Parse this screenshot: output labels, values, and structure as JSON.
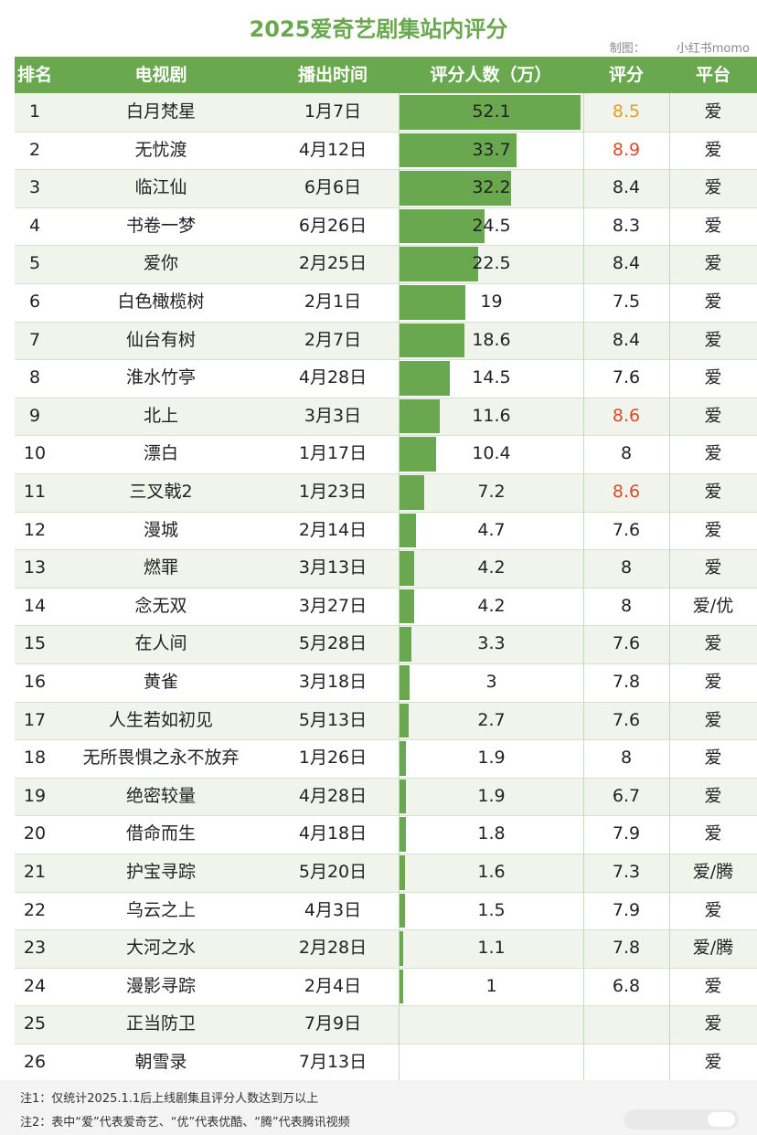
{
  "title": "2025爱奇艺剧集站内评分",
  "credit": {
    "label": "制图：",
    "author": "小红书momo"
  },
  "columns": [
    "排名",
    "电视剧",
    "播出时间",
    "评分人数（万）",
    "评分",
    "平台"
  ],
  "colors": {
    "header_bg": "#6aa84f",
    "bar": "#6aa84f",
    "rating_default": "#222222",
    "rating_gold": "#e0a020",
    "rating_red": "#d94a2a"
  },
  "chart_data": {
    "type": "table",
    "title": "2025爱奇艺剧集站内评分",
    "xlim": [
      0,
      52.1
    ],
    "rows": [
      {
        "rank": "1",
        "name": "白月梵星",
        "date": "1月7日",
        "count": 52.1,
        "count_label": "52.1",
        "rating": "8.5",
        "rating_color": "gold",
        "platform": "爱"
      },
      {
        "rank": "2",
        "name": "无忧渡",
        "date": "4月12日",
        "count": 33.7,
        "count_label": "33.7",
        "rating": "8.9",
        "rating_color": "red",
        "platform": "爱"
      },
      {
        "rank": "3",
        "name": "临江仙",
        "date": "6月6日",
        "count": 32.2,
        "count_label": "32.2",
        "rating": "8.4",
        "rating_color": "default",
        "platform": "爱"
      },
      {
        "rank": "4",
        "name": "书卷一梦",
        "date": "6月26日",
        "count": 24.5,
        "count_label": "24.5",
        "rating": "8.3",
        "rating_color": "default",
        "platform": "爱"
      },
      {
        "rank": "5",
        "name": "爱你",
        "date": "2月25日",
        "count": 22.5,
        "count_label": "22.5",
        "rating": "8.4",
        "rating_color": "default",
        "platform": "爱"
      },
      {
        "rank": "6",
        "name": "白色橄榄树",
        "date": "2月1日",
        "count": 19,
        "count_label": "19",
        "rating": "7.5",
        "rating_color": "default",
        "platform": "爱"
      },
      {
        "rank": "7",
        "name": "仙台有树",
        "date": "2月7日",
        "count": 18.6,
        "count_label": "18.6",
        "rating": "8.4",
        "rating_color": "default",
        "platform": "爱"
      },
      {
        "rank": "8",
        "name": "淮水竹亭",
        "date": "4月28日",
        "count": 14.5,
        "count_label": "14.5",
        "rating": "7.6",
        "rating_color": "default",
        "platform": "爱"
      },
      {
        "rank": "9",
        "name": "北上",
        "date": "3月3日",
        "count": 11.6,
        "count_label": "11.6",
        "rating": "8.6",
        "rating_color": "red",
        "platform": "爱"
      },
      {
        "rank": "10",
        "name": "漂白",
        "date": "1月17日",
        "count": 10.4,
        "count_label": "10.4",
        "rating": "8",
        "rating_color": "default",
        "platform": "爱"
      },
      {
        "rank": "11",
        "name": "三叉戟2",
        "date": "1月23日",
        "count": 7.2,
        "count_label": "7.2",
        "rating": "8.6",
        "rating_color": "red",
        "platform": "爱"
      },
      {
        "rank": "12",
        "name": "漫城",
        "date": "2月14日",
        "count": 4.7,
        "count_label": "4.7",
        "rating": "7.6",
        "rating_color": "default",
        "platform": "爱"
      },
      {
        "rank": "13",
        "name": "燃罪",
        "date": "3月13日",
        "count": 4.2,
        "count_label": "4.2",
        "rating": "8",
        "rating_color": "default",
        "platform": "爱"
      },
      {
        "rank": "14",
        "name": "念无双",
        "date": "3月27日",
        "count": 4.2,
        "count_label": "4.2",
        "rating": "8",
        "rating_color": "default",
        "platform": "爱/优"
      },
      {
        "rank": "15",
        "name": "在人间",
        "date": "5月28日",
        "count": 3.3,
        "count_label": "3.3",
        "rating": "7.6",
        "rating_color": "default",
        "platform": "爱"
      },
      {
        "rank": "16",
        "name": "黄雀",
        "date": "3月18日",
        "count": 3,
        "count_label": "3",
        "rating": "7.8",
        "rating_color": "default",
        "platform": "爱"
      },
      {
        "rank": "17",
        "name": "人生若如初见",
        "date": "5月13日",
        "count": 2.7,
        "count_label": "2.7",
        "rating": "7.6",
        "rating_color": "default",
        "platform": "爱"
      },
      {
        "rank": "18",
        "name": "无所畏惧之永不放弃",
        "date": "1月26日",
        "count": 1.9,
        "count_label": "1.9",
        "rating": "8",
        "rating_color": "default",
        "platform": "爱"
      },
      {
        "rank": "19",
        "name": "绝密较量",
        "date": "4月28日",
        "count": 1.9,
        "count_label": "1.9",
        "rating": "6.7",
        "rating_color": "default",
        "platform": "爱"
      },
      {
        "rank": "20",
        "name": "借命而生",
        "date": "4月18日",
        "count": 1.8,
        "count_label": "1.8",
        "rating": "7.9",
        "rating_color": "default",
        "platform": "爱"
      },
      {
        "rank": "21",
        "name": "护宝寻踪",
        "date": "5月20日",
        "count": 1.6,
        "count_label": "1.6",
        "rating": "7.3",
        "rating_color": "default",
        "platform": "爱/腾"
      },
      {
        "rank": "22",
        "name": "乌云之上",
        "date": "4月3日",
        "count": 1.5,
        "count_label": "1.5",
        "rating": "7.9",
        "rating_color": "default",
        "platform": "爱"
      },
      {
        "rank": "23",
        "name": "大河之水",
        "date": "2月28日",
        "count": 1.1,
        "count_label": "1.1",
        "rating": "7.8",
        "rating_color": "default",
        "platform": "爱/腾"
      },
      {
        "rank": "24",
        "name": "漫影寻踪",
        "date": "2月4日",
        "count": 1,
        "count_label": "1",
        "rating": "6.8",
        "rating_color": "default",
        "platform": "爱"
      },
      {
        "rank": "25",
        "name": "正当防卫",
        "date": "7月9日",
        "count": null,
        "count_label": "",
        "rating": "",
        "rating_color": "default",
        "platform": "爱"
      },
      {
        "rank": "26",
        "name": "朝雪录",
        "date": "7月13日",
        "count": null,
        "count_label": "",
        "rating": "",
        "rating_color": "default",
        "platform": "爱"
      }
    ]
  },
  "notes": [
    "注1：仅统计2025.1.1后上线剧集且评分人数达到万以上",
    "注2：表中“爱”代表爱奇艺、“优”代表优酷、“腾”代表腾讯视频"
  ]
}
